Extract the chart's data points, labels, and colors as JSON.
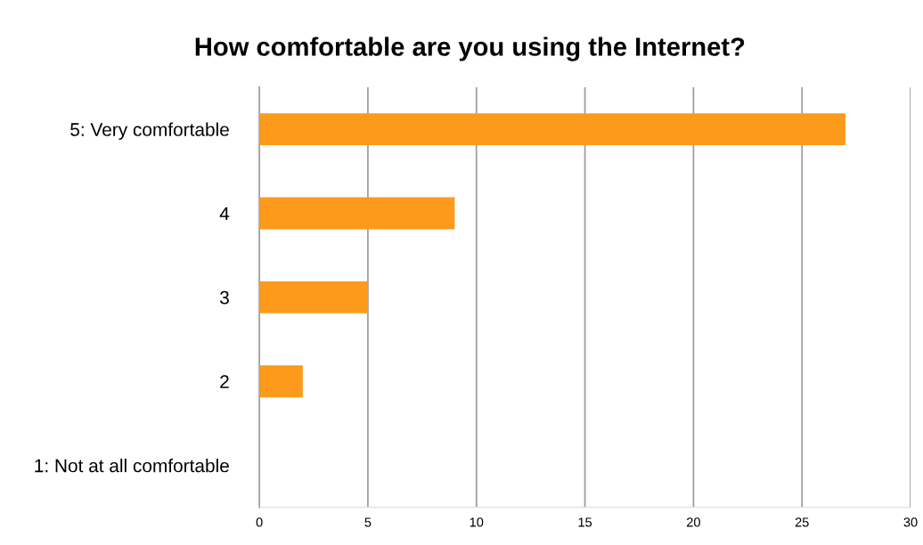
{
  "chart_data": {
    "type": "bar",
    "orientation": "horizontal",
    "title": "How comfortable are you using the Internet?",
    "categories": [
      "5: Very comfortable",
      "4",
      "3",
      "2",
      "1: Not at all comfortable"
    ],
    "values": [
      27,
      9,
      5,
      2,
      0
    ],
    "color": "#fd9a1b",
    "xlim": [
      0,
      30
    ],
    "xticks": [
      0,
      5,
      10,
      15,
      20,
      25,
      30
    ],
    "grid": "x"
  }
}
